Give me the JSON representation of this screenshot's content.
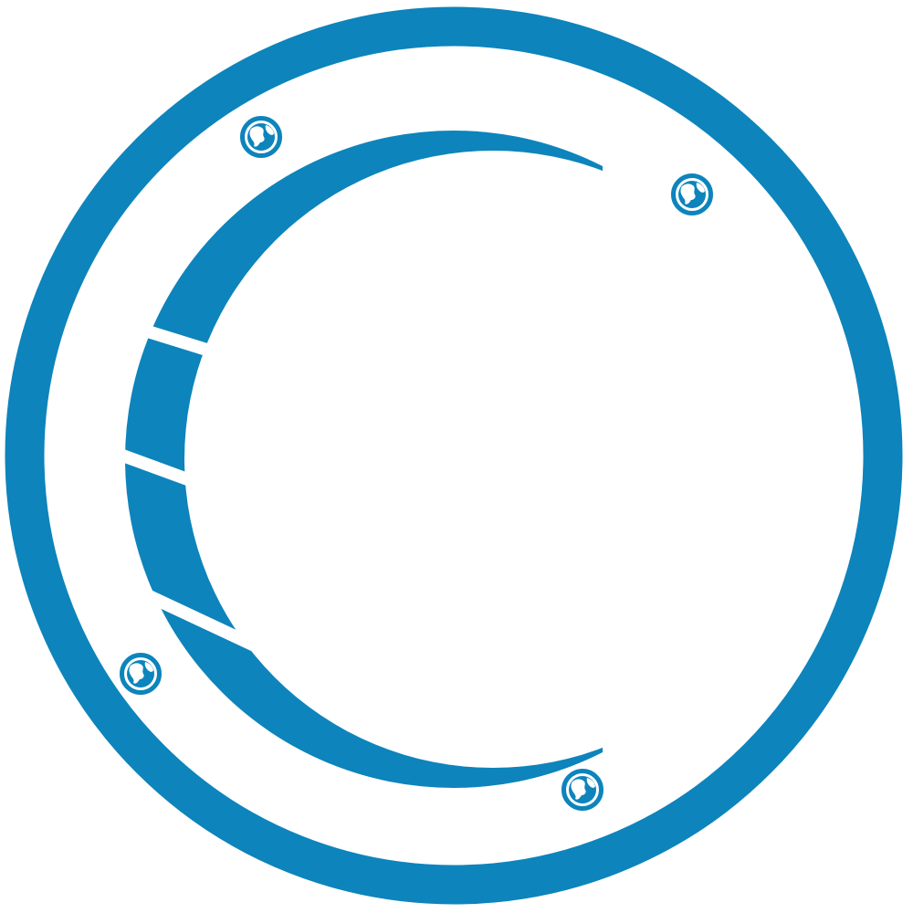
{
  "logo": {
    "accent_color": "#0d84bb",
    "background_color": "#ffffff",
    "outer_ring": "circle-ring",
    "inner_shape": "crescent-c",
    "crescent_segments": 4,
    "icons": [
      "globe-icon",
      "globe-icon",
      "globe-icon",
      "globe-icon"
    ]
  }
}
